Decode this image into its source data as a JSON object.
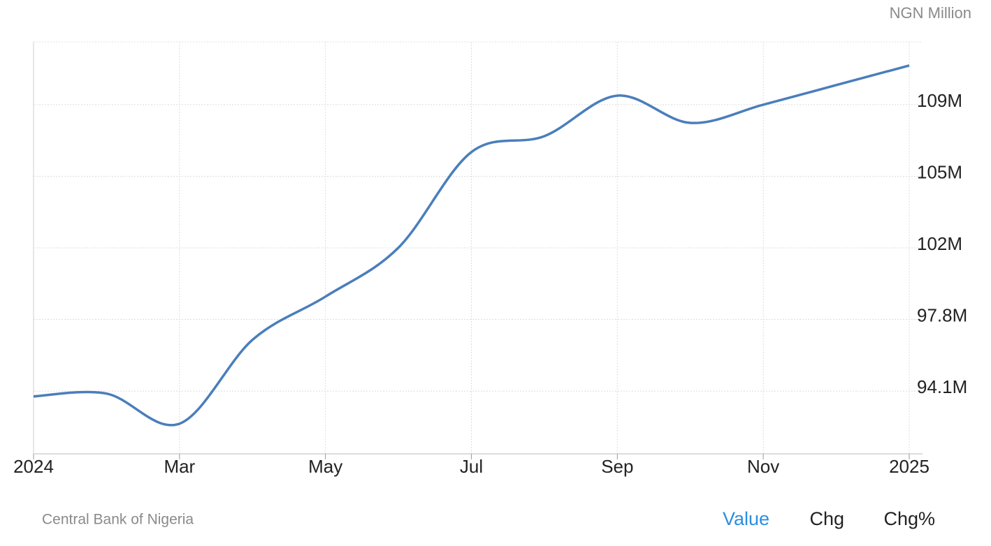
{
  "chart_data": {
    "type": "line",
    "unit_label": "NGN Million",
    "source": "Central Bank of Nigeria",
    "buttons": [
      "Value",
      "Chg",
      "Chg%"
    ],
    "x": [
      "2024-01",
      "2024-02",
      "2024-03",
      "2024-04",
      "2024-05",
      "2024-06",
      "2024-07",
      "2024-08",
      "2024-09",
      "2024-10",
      "2024-11",
      "2024-12",
      "2025-01"
    ],
    "series": [
      {
        "name": "Value",
        "color": "#4a7ebb",
        "values": [
          93820000,
          93970000,
          92400000,
          96770000,
          99020000,
          101570000,
          106550000,
          107380000,
          109490000,
          108070000,
          109020000,
          110040000,
          111060000
        ]
      }
    ],
    "xticks": [
      {
        "value": "2024-01",
        "label": "2024"
      },
      {
        "value": "2024-03",
        "label": "Mar"
      },
      {
        "value": "2024-05",
        "label": "May"
      },
      {
        "value": "2024-07",
        "label": "Jul"
      },
      {
        "value": "2024-09",
        "label": "Sep"
      },
      {
        "value": "2024-11",
        "label": "Nov"
      },
      {
        "value": "2025-01",
        "label": "2025"
      }
    ],
    "ylim": [
      90830000,
      112290000
    ],
    "yticks": [
      {
        "value": 94100000,
        "label": "94.1M"
      },
      {
        "value": 97830000,
        "label": "97.8M"
      },
      {
        "value": 101560000,
        "label": "102M"
      },
      {
        "value": 105290000,
        "label": "105M"
      },
      {
        "value": 109020000,
        "label": "109M"
      }
    ],
    "grid": true
  }
}
